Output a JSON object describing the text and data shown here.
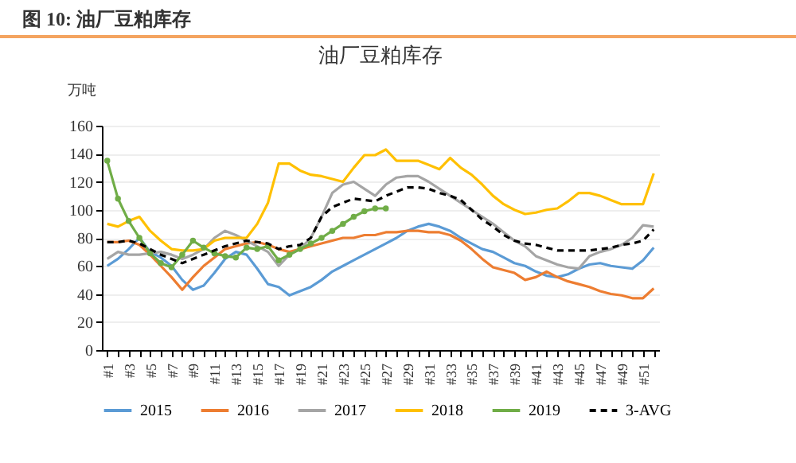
{
  "chart_data": {
    "type": "line",
    "title": "图 10:  油厂豆粕库存",
    "subtitle": "油厂豆粕库存",
    "ylabel": "万吨",
    "categories": [
      "#1",
      null,
      "#3",
      null,
      "#5",
      null,
      "#7",
      null,
      "#9",
      null,
      "#11",
      null,
      "#13",
      null,
      "#15",
      null,
      "#17",
      null,
      "#19",
      null,
      "#21",
      null,
      "#23",
      null,
      "#25",
      null,
      "#27",
      null,
      "#29",
      null,
      "#31",
      null,
      "#33",
      null,
      "#35",
      null,
      "#37",
      null,
      "#39",
      null,
      "#41",
      null,
      "#43",
      null,
      "#45",
      null,
      "#47",
      null,
      "#49",
      null,
      "#51",
      null
    ],
    "ylim": [
      0,
      160
    ],
    "yticks": [
      0,
      20,
      40,
      60,
      80,
      100,
      120,
      140,
      160
    ],
    "grid": "y",
    "legend": "bottom",
    "series": [
      {
        "name": "2015",
        "color": "#5b9bd5",
        "values": [
          60,
          65,
          72,
          80,
          70,
          66,
          60,
          50,
          43,
          46,
          55,
          65,
          70,
          68,
          58,
          47,
          45,
          39,
          42,
          45,
          50,
          56,
          60,
          64,
          68,
          72,
          76,
          80,
          85,
          88,
          90,
          88,
          85,
          80,
          76,
          72,
          70,
          66,
          62,
          60,
          56,
          53,
          52,
          54,
          58,
          61,
          62,
          60,
          59,
          58,
          64,
          73
        ]
      },
      {
        "name": "2016",
        "color": "#ed7d31",
        "values": [
          77,
          77,
          78,
          75,
          68,
          60,
          52,
          43,
          52,
          60,
          66,
          72,
          74,
          76,
          77,
          75,
          72,
          70,
          72,
          74,
          76,
          78,
          80,
          80,
          82,
          82,
          84,
          84,
          85,
          85,
          84,
          84,
          82,
          78,
          72,
          65,
          59,
          57,
          55,
          50,
          52,
          56,
          52,
          49,
          47,
          45,
          42,
          40,
          39,
          37,
          37,
          44
        ]
      },
      {
        "name": "2017",
        "color": "#a5a5a5",
        "values": [
          65,
          70,
          68,
          68,
          69,
          70,
          68,
          65,
          68,
          72,
          80,
          85,
          82,
          78,
          74,
          70,
          60,
          68,
          72,
          80,
          95,
          112,
          118,
          120,
          115,
          110,
          118,
          123,
          124,
          124,
          120,
          115,
          110,
          105,
          100,
          95,
          90,
          84,
          78,
          74,
          67,
          64,
          61,
          59,
          58,
          67,
          70,
          72,
          75,
          80,
          89,
          88
        ]
      },
      {
        "name": "2018",
        "color": "#ffc000",
        "values": [
          90,
          88,
          92,
          95,
          85,
          78,
          72,
          71,
          71,
          72,
          78,
          80,
          80,
          80,
          90,
          105,
          133,
          133,
          128,
          125,
          124,
          122,
          120,
          130,
          139,
          139,
          143,
          135,
          135,
          135,
          132,
          129,
          137,
          130,
          125,
          118,
          110,
          104,
          100,
          97,
          98,
          100,
          101,
          106,
          112,
          112,
          110,
          107,
          104,
          104,
          104,
          126
        ]
      },
      {
        "name": "2019",
        "color": "#70ad47",
        "marker": "circle",
        "values": [
          135,
          108,
          92,
          80,
          69,
          62,
          59,
          68,
          78,
          73,
          69,
          67,
          66,
          73,
          72,
          74,
          64,
          68,
          72,
          76,
          80,
          85,
          90,
          95,
          99,
          101,
          101,
          null,
          null,
          null,
          null,
          null,
          null,
          null,
          null,
          null,
          null,
          null,
          null,
          null,
          null,
          null,
          null,
          null,
          null,
          null,
          null,
          null,
          null,
          null,
          null,
          null
        ]
      },
      {
        "name": "3-AVG",
        "color": "#000000",
        "line_style": "dashed",
        "values": [
          77,
          77,
          78,
          76,
          72,
          68,
          65,
          62,
          65,
          68,
          71,
          74,
          76,
          78,
          77,
          76,
          72,
          74,
          75,
          80,
          95,
          102,
          105,
          108,
          107,
          106,
          110,
          113,
          116,
          116,
          115,
          112,
          110,
          107,
          100,
          93,
          88,
          82,
          78,
          76,
          75,
          73,
          71,
          71,
          71,
          71,
          72,
          73,
          75,
          76,
          78,
          86
        ]
      }
    ]
  }
}
